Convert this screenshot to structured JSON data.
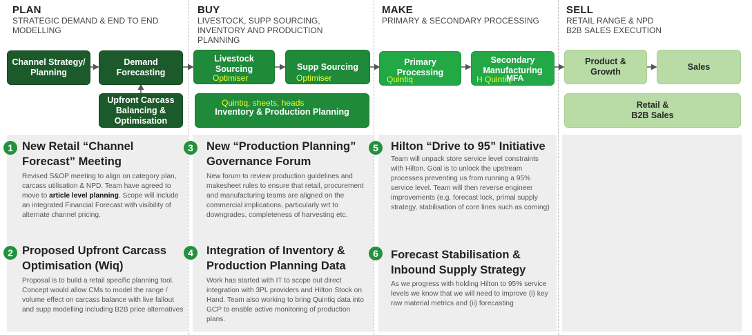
{
  "phases": {
    "plan": {
      "title": "PLAN",
      "subtitle_1": "STRATEGIC DEMAND & END TO END",
      "subtitle_2": "MODELLING"
    },
    "buy": {
      "title": "BUY",
      "subtitle_1": "LIVESTOCK, SUPP SOURCING,",
      "subtitle_2": "INVENTORY AND PRODUCTION",
      "subtitle_3": "PLANNING"
    },
    "make": {
      "title": "MAKE",
      "subtitle_1": "PRIMARY & SECONDARY PROCESSING"
    },
    "sell": {
      "title": "SELL",
      "subtitle_1": "RETAIL RANGE & NPD",
      "subtitle_2": "B2B SALES EXECUTION"
    }
  },
  "boxes": {
    "channel_strategy": "Channel Strategy/ Planning",
    "demand_forecasting": "Demand Forecasting",
    "upfront_carcass": "Upfront Carcass Balancing & Optimisation",
    "livestock_sourcing": "Livestock Sourcing",
    "livestock_tag": "Optimiser",
    "supp_sourcing": "Supp Sourcing",
    "supp_tag": "Optimiser",
    "inventory_planning": "Inventory & Production Planning",
    "inventory_tag": "Quintiq, sheets, heads",
    "primary_processing": "Primary Processing",
    "primary_tag": "Quintiq",
    "secondary_manufacturing": "Secondary Manufacturing",
    "secondary_tag_1": "H Quintiq",
    "secondary_tag_2": "MFA",
    "product_growth": "Product & Growth",
    "sales": "Sales",
    "retail_b2b": "Retail & B2B Sales"
  },
  "items": [
    {
      "num": "1",
      "title_1": "New Retail “Channel",
      "title_2": "Forecast” Meeting",
      "body_before": "Revised S&OP meeting to align on category plan, carcass utilisation & NPD. Team have agreed to move to ",
      "body_bold": "article level planning",
      "body_after": ". Scope will include an integrated  Financial Forecast with visibility of alternate channel pricing."
    },
    {
      "num": "2",
      "title_1": "Proposed Upfront Carcass",
      "title_2": "Optimisation (Wiq)",
      "body": "Proposal is to build a retail specific planning tool. Concept would allow CMs to model the range / volume effect on carcass balance with live fallout and supp modelling including B2B price alternatives"
    },
    {
      "num": "3",
      "title_1": "New “Production Planning”",
      "title_2": "Governance Forum",
      "body": "New forum to review production guidelines and makesheet rules to ensure that retail, procurement and manufacturing teams are aligned on the commercial implications, particularly wrt to downgrades, completeness of harvesting etc."
    },
    {
      "num": "4",
      "title_1": "Integration of Inventory &",
      "title_2": "Production Planning Data",
      "body": "Work has started with IT to scope out direct integration with 3PL providers and Hilton Stock on Hand. Team also working to bring Quintiq data into GCP to enable active monitoring of production plans."
    },
    {
      "num": "5",
      "title_1": "Hilton “Drive to 95” Initiative",
      "body": "Team will unpack store service level constraints with Hilton. Goal is to unlock the upstream processes preventing us from running a 95% service level. Team will then reverse engineer improvements (e.g. forecast lock, primal supply strategy, stabilisation of core lines such as corning)"
    },
    {
      "num": "6",
      "title_1": "Forecast Stabilisation &",
      "title_2": "Inbound Supply Strategy",
      "body": "As we progress with holding Hilton to 95% service levels we know that we will need to improve (i) key raw material metrics and (ii) forecasting"
    }
  ],
  "colors": {
    "plan": "#1d5a2b",
    "buy": "#1f8a3a",
    "make": "#22a845",
    "sell": "#b9dca6",
    "tag": "#e8ff2e",
    "panel": "#eeeeee"
  }
}
